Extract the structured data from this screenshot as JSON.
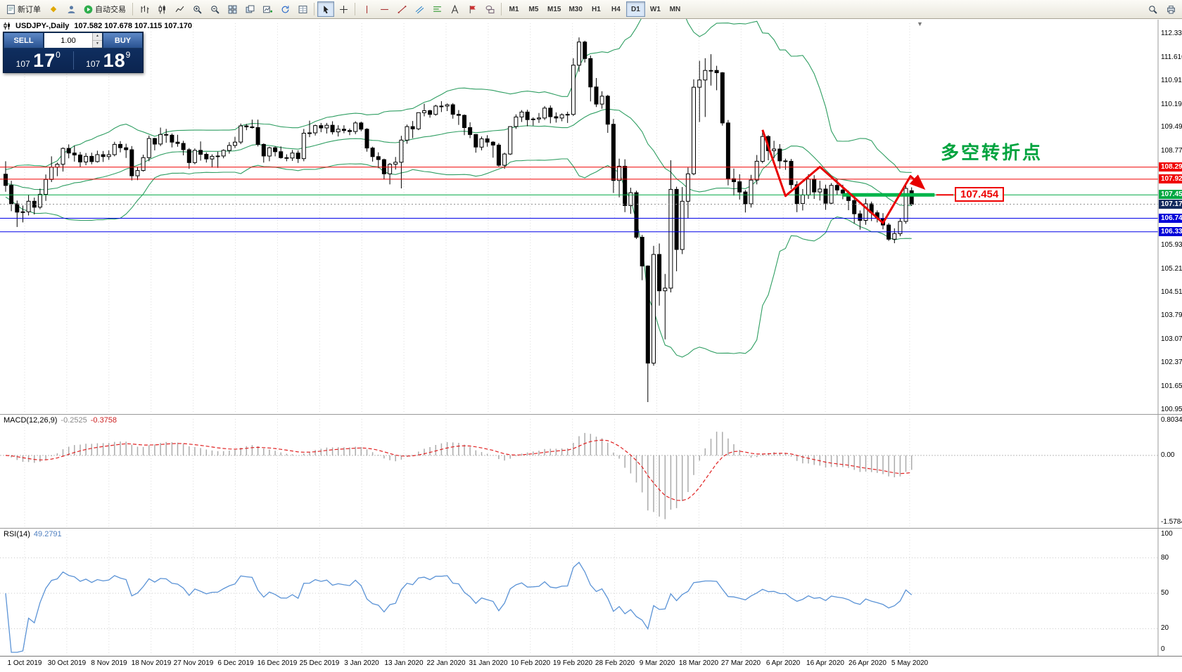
{
  "toolbar": {
    "new_order": "新订单",
    "auto_trading": "自动交易",
    "timeframes": [
      "M1",
      "M5",
      "M15",
      "M30",
      "H1",
      "H4",
      "D1",
      "W1",
      "MN"
    ],
    "active_timeframe": "D1"
  },
  "icons": {
    "diamond": "◆",
    "collapse": "▼",
    "spin_up": "▲",
    "spin_down": "▼"
  },
  "trade_panel": {
    "sell_label": "SELL",
    "buy_label": "BUY",
    "volume": "1.00",
    "sell_base": "107",
    "sell_pips": "17",
    "sell_pt": "0",
    "buy_base": "107",
    "buy_pips": "18",
    "buy_pt": "9"
  },
  "chart_header": {
    "symbol": "USDJPY-,Daily",
    "ohlc": "107.582 107.678 107.115 107.170"
  },
  "annotations": {
    "turning_point": "多空转折点",
    "price_tag": "107.454"
  },
  "macd": {
    "name": "MACD(12,26,9)",
    "value_main": "-0.2525",
    "value_signal": "-0.3758",
    "axis": [
      "0.8034",
      "0.00",
      "-1.5784"
    ]
  },
  "rsi": {
    "name": "RSI(14)",
    "value": "49.2791",
    "axis": [
      "100",
      "80",
      "50",
      "20",
      "0"
    ],
    "levels": [
      80,
      50,
      20
    ]
  },
  "chart_data": {
    "type": "candlestick",
    "symbol": "USDJPY",
    "timeframe": "Daily",
    "title": "USDJPY-,Daily 107.582 107.678 107.115 107.170",
    "price_axis_ticks": [
      "112.330",
      "111.610",
      "110.910",
      "110.190",
      "109.490",
      "108.770",
      "105.930",
      "105.210",
      "104.510",
      "103.790",
      "103.070",
      "102.370",
      "101.650",
      "100.950"
    ],
    "ylim": [
      100.95,
      112.33
    ],
    "dates": [
      "1 Oct 2019",
      "30 Oct 2019",
      "8 Nov 2019",
      "18 Nov 2019",
      "27 Nov 2019",
      "6 Dec 2019",
      "16 Dec 2019",
      "25 Dec 2019",
      "3 Jan 2020",
      "13 Jan 2020",
      "22 Jan 2020",
      "31 Jan 2020",
      "10 Feb 2020",
      "19 Feb 2020",
      "28 Feb 2020",
      "9 Mar 2020",
      "18 Mar 2020",
      "27 Mar 2020",
      "6 Apr 2020",
      "16 Apr 2020",
      "26 Apr 2020",
      "5 May 2020"
    ],
    "levels": [
      {
        "price": 108.293,
        "color": "#f00000",
        "label": "108.293",
        "bg": "#f00000",
        "style": "solid"
      },
      {
        "price": 107.928,
        "color": "#f00000",
        "label": "107.928",
        "bg": "#f00000",
        "style": "solid"
      },
      {
        "price": 107.454,
        "color": "#00a843",
        "label": "107.454",
        "bg": "#00a843",
        "style": "solid"
      },
      {
        "price": 107.17,
        "color": "#909090",
        "label": "107.170",
        "bg": "#132a5e",
        "style": "dotted"
      },
      {
        "price": 106.744,
        "color": "#0000e8",
        "label": "106.744",
        "bg": "#0000d8",
        "style": "solid"
      },
      {
        "price": 106.335,
        "color": "#0000e8",
        "label": "106.335",
        "bg": "#0000d8",
        "style": "solid"
      }
    ],
    "green_segment": {
      "price": 107.454,
      "from_index": 146,
      "to_index": 162,
      "width": 5,
      "color": "#00b44a"
    },
    "trend_arrow": {
      "color": "#e80000",
      "points": [
        [
          132,
          109.42
        ],
        [
          136,
          107.42
        ],
        [
          142,
          108.3
        ],
        [
          153,
          106.6
        ],
        [
          157.8,
          108.02
        ],
        [
          160,
          107.67
        ]
      ]
    },
    "bollinger": {
      "period": 20,
      "deviation": 2,
      "color": "#2f9e62"
    },
    "macd_range": {
      "max": 0.8034,
      "min": -1.5784
    },
    "candles": [
      [
        108.08,
        108.47,
        107.55,
        107.74
      ],
      [
        107.74,
        107.88,
        106.96,
        107.18
      ],
      [
        107.18,
        107.28,
        106.48,
        106.93
      ],
      [
        106.93,
        107.13,
        106.62,
        106.94
      ],
      [
        106.94,
        107.46,
        106.83,
        107.26
      ],
      [
        107.26,
        107.37,
        106.86,
        107.08
      ],
      [
        107.08,
        107.64,
        107.02,
        107.47
      ],
      [
        107.47,
        108.07,
        107.27,
        107.92
      ],
      [
        107.92,
        108.62,
        107.84,
        108.29
      ],
      [
        108.29,
        108.43,
        108.02,
        108.38
      ],
      [
        108.38,
        108.89,
        108.16,
        108.86
      ],
      [
        108.86,
        108.98,
        108.56,
        108.72
      ],
      [
        108.72,
        108.94,
        108.46,
        108.66
      ],
      [
        108.66,
        108.75,
        108.3,
        108.45
      ],
      [
        108.45,
        108.72,
        108.35,
        108.62
      ],
      [
        108.62,
        108.73,
        108.38,
        108.46
      ],
      [
        108.46,
        108.79,
        108.43,
        108.67
      ],
      [
        108.67,
        108.78,
        108.45,
        108.61
      ],
      [
        108.61,
        108.8,
        108.51,
        108.67
      ],
      [
        108.67,
        109.06,
        108.62,
        108.98
      ],
      [
        108.98,
        109.08,
        108.74,
        108.88
      ],
      [
        108.88,
        109.0,
        108.57,
        108.82
      ],
      [
        108.82,
        108.93,
        107.89,
        108.03
      ],
      [
        108.03,
        108.29,
        107.9,
        108.19
      ],
      [
        108.19,
        108.67,
        108.16,
        108.58
      ],
      [
        108.58,
        109.25,
        108.47,
        109.16
      ],
      [
        109.16,
        109.18,
        108.8,
        108.99
      ],
      [
        108.99,
        109.49,
        108.93,
        109.28
      ],
      [
        109.28,
        109.45,
        109.03,
        109.26
      ],
      [
        109.26,
        109.31,
        108.89,
        109.05
      ],
      [
        109.05,
        109.27,
        108.91,
        109.01
      ],
      [
        109.01,
        109.09,
        108.65,
        108.82
      ],
      [
        108.82,
        108.87,
        108.24,
        108.43
      ],
      [
        108.43,
        108.86,
        108.38,
        108.8
      ],
      [
        108.8,
        109.07,
        108.49,
        108.68
      ],
      [
        108.68,
        108.74,
        108.43,
        108.54
      ],
      [
        108.54,
        108.68,
        108.28,
        108.62
      ],
      [
        108.62,
        108.76,
        108.27,
        108.63
      ],
      [
        108.63,
        108.83,
        108.56,
        108.8
      ],
      [
        108.8,
        109.05,
        108.7,
        108.95
      ],
      [
        108.95,
        109.21,
        108.87,
        109.05
      ],
      [
        109.05,
        109.61,
        108.99,
        109.54
      ],
      [
        109.54,
        109.6,
        109.41,
        109.51
      ],
      [
        109.51,
        109.73,
        109.46,
        109.49
      ],
      [
        109.49,
        109.73,
        108.92,
        108.98
      ],
      [
        108.98,
        109.01,
        108.43,
        108.63
      ],
      [
        108.63,
        108.91,
        108.47,
        108.88
      ],
      [
        108.88,
        108.92,
        108.62,
        108.76
      ],
      [
        108.76,
        108.92,
        108.55,
        108.58
      ],
      [
        108.58,
        108.68,
        108.47,
        108.57
      ],
      [
        108.57,
        108.81,
        108.48,
        108.72
      ],
      [
        108.72,
        108.8,
        108.42,
        108.55
      ],
      [
        108.55,
        109.45,
        108.47,
        109.32
      ],
      [
        109.32,
        109.7,
        109.2,
        109.33
      ],
      [
        109.33,
        109.58,
        109.25,
        109.55
      ],
      [
        109.55,
        109.63,
        109.35,
        109.48
      ],
      [
        109.48,
        109.63,
        109.31,
        109.56
      ],
      [
        109.56,
        109.68,
        109.28,
        109.36
      ],
      [
        109.36,
        109.56,
        109.22,
        109.44
      ],
      [
        109.44,
        109.56,
        109.32,
        109.4
      ],
      [
        109.4,
        109.46,
        109.26,
        109.37
      ],
      [
        109.37,
        109.68,
        109.29,
        109.63
      ],
      [
        109.63,
        109.67,
        109.38,
        109.44
      ],
      [
        109.44,
        109.47,
        108.76,
        108.87
      ],
      [
        108.87,
        108.91,
        108.46,
        108.61
      ],
      [
        108.61,
        108.74,
        108.26,
        108.52
      ],
      [
        108.52,
        108.55,
        107.92,
        108.09
      ],
      [
        108.09,
        108.42,
        107.77,
        108.38
      ],
      [
        108.38,
        108.6,
        108.22,
        108.44
      ],
      [
        108.44,
        109.24,
        107.65,
        109.11
      ],
      [
        109.11,
        109.58,
        109.0,
        109.52
      ],
      [
        109.52,
        109.69,
        109.17,
        109.45
      ],
      [
        109.45,
        109.95,
        109.41,
        109.94
      ],
      [
        109.94,
        110.21,
        109.83,
        110.0
      ],
      [
        110.0,
        110.03,
        109.79,
        109.89
      ],
      [
        109.89,
        110.18,
        109.85,
        110.14
      ],
      [
        110.14,
        110.29,
        109.96,
        110.14
      ],
      [
        110.14,
        110.22,
        109.99,
        110.18
      ],
      [
        110.18,
        110.23,
        109.76,
        109.89
      ],
      [
        109.89,
        110.02,
        109.57,
        109.86
      ],
      [
        109.86,
        109.89,
        109.26,
        109.49
      ],
      [
        109.49,
        109.65,
        109.17,
        109.28
      ],
      [
        109.28,
        109.29,
        108.73,
        108.9
      ],
      [
        108.9,
        109.22,
        108.8,
        109.15
      ],
      [
        109.15,
        109.26,
        108.91,
        109.05
      ],
      [
        109.05,
        109.08,
        108.58,
        108.96
      ],
      [
        108.96,
        109.02,
        108.31,
        108.35
      ],
      [
        108.35,
        108.73,
        108.24,
        108.69
      ],
      [
        108.69,
        109.53,
        108.66,
        109.52
      ],
      [
        109.52,
        109.89,
        109.45,
        109.81
      ],
      [
        109.81,
        110.02,
        109.66,
        109.96
      ],
      [
        109.96,
        110.03,
        109.53,
        109.73
      ],
      [
        109.73,
        109.8,
        109.55,
        109.75
      ],
      [
        109.75,
        109.93,
        109.63,
        109.78
      ],
      [
        109.78,
        110.14,
        109.72,
        110.08
      ],
      [
        110.08,
        110.16,
        109.62,
        109.82
      ],
      [
        109.82,
        109.95,
        109.64,
        109.78
      ],
      [
        109.78,
        109.92,
        109.68,
        109.88
      ],
      [
        109.88,
        109.97,
        109.63,
        109.89
      ],
      [
        109.89,
        111.59,
        109.84,
        111.38
      ],
      [
        111.38,
        112.22,
        111.18,
        112.08
      ],
      [
        112.08,
        112.12,
        111.46,
        111.58
      ],
      [
        111.58,
        111.67,
        110.28,
        110.72
      ],
      [
        110.72,
        110.99,
        110.11,
        110.2
      ],
      [
        110.2,
        110.59,
        110.06,
        110.44
      ],
      [
        110.44,
        110.48,
        109.33,
        109.59
      ],
      [
        109.59,
        109.75,
        107.51,
        107.89
      ],
      [
        107.89,
        108.55,
        107.38,
        108.32
      ],
      [
        108.32,
        108.53,
        106.93,
        107.13
      ],
      [
        107.13,
        107.67,
        106.88,
        107.52
      ],
      [
        107.52,
        107.58,
        106.12,
        106.17
      ],
      [
        106.17,
        106.24,
        104.87,
        105.3
      ],
      [
        105.3,
        105.32,
        101.18,
        102.36
      ],
      [
        102.36,
        105.91,
        102.28,
        105.65
      ],
      [
        105.65,
        105.98,
        104.1,
        104.55
      ],
      [
        104.55,
        105.06,
        103.08,
        104.63
      ],
      [
        104.63,
        108.5,
        104.5,
        107.62
      ],
      [
        107.62,
        107.7,
        105.14,
        105.8
      ],
      [
        105.8,
        107.69,
        105.66,
        107.26
      ],
      [
        107.26,
        108.28,
        106.75,
        108.09
      ],
      [
        108.09,
        110.95,
        108.05,
        110.71
      ],
      [
        110.71,
        111.51,
        109.66,
        110.93
      ],
      [
        110.93,
        111.59,
        109.81,
        111.22
      ],
      [
        111.22,
        111.71,
        110.76,
        111.22
      ],
      [
        111.22,
        111.36,
        110.62,
        111.15
      ],
      [
        111.15,
        111.17,
        109.55,
        109.63
      ],
      [
        109.63,
        109.72,
        107.74,
        107.94
      ],
      [
        107.94,
        108.25,
        107.43,
        107.85
      ],
      [
        107.85,
        108.08,
        107.31,
        107.54
      ],
      [
        107.54,
        107.6,
        106.92,
        107.18
      ],
      [
        107.18,
        108.06,
        107.07,
        107.9
      ],
      [
        107.9,
        108.66,
        107.77,
        108.47
      ],
      [
        108.47,
        109.38,
        108.41,
        109.22
      ],
      [
        109.22,
        109.26,
        108.5,
        108.79
      ],
      [
        108.79,
        109.09,
        108.56,
        108.84
      ],
      [
        108.84,
        108.99,
        108.24,
        108.48
      ],
      [
        108.48,
        108.55,
        108.21,
        108.47
      ],
      [
        108.47,
        108.54,
        107.63,
        107.76
      ],
      [
        107.76,
        107.87,
        106.93,
        107.19
      ],
      [
        107.19,
        107.63,
        106.98,
        107.45
      ],
      [
        107.45,
        108.08,
        107.33,
        107.93
      ],
      [
        107.93,
        108.05,
        107.33,
        107.54
      ],
      [
        107.54,
        107.88,
        107.28,
        107.63
      ],
      [
        107.63,
        107.76,
        107.0,
        107.2
      ],
      [
        107.2,
        107.81,
        107.16,
        107.74
      ],
      [
        107.74,
        107.92,
        107.45,
        107.6
      ],
      [
        107.6,
        107.76,
        107.32,
        107.5
      ],
      [
        107.5,
        107.58,
        106.99,
        107.28
      ],
      [
        107.28,
        107.36,
        106.59,
        106.88
      ],
      [
        106.88,
        106.98,
        106.4,
        106.68
      ],
      [
        106.68,
        107.34,
        106.55,
        107.18
      ],
      [
        107.18,
        107.25,
        106.66,
        106.91
      ],
      [
        106.91,
        106.98,
        106.62,
        106.74
      ],
      [
        106.74,
        106.9,
        106.41,
        106.54
      ],
      [
        106.54,
        106.6,
        106.06,
        106.11
      ],
      [
        106.11,
        106.44,
        105.99,
        106.28
      ],
      [
        106.28,
        106.74,
        106.2,
        106.65
      ],
      [
        106.65,
        107.77,
        106.58,
        107.65
      ],
      [
        107.58,
        107.68,
        107.12,
        107.17
      ]
    ]
  }
}
